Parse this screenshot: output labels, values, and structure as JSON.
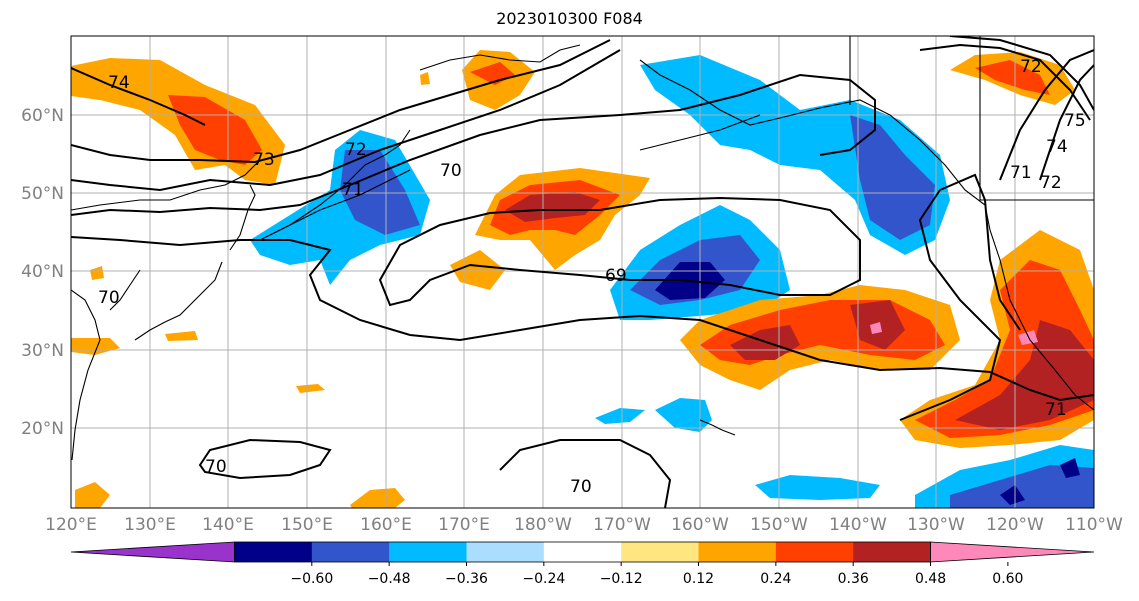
{
  "title": "2023010300 F084",
  "lat_labels": [
    "60°N",
    "50°N",
    "40°N",
    "30°N",
    "20°N"
  ],
  "lon_labels": [
    "120°E",
    "130°E",
    "140°E",
    "150°E",
    "160°E",
    "170°E",
    "180°W",
    "170°W",
    "160°W",
    "150°W",
    "140°W",
    "130°W",
    "120°W",
    "110°W"
  ],
  "colorbar": {
    "colors": [
      "#9933cc",
      "#000088",
      "#3355cc",
      "#00bbff",
      "#aaddff",
      "#ffffff",
      "#ffe680",
      "#ffa500",
      "#ff4000",
      "#b22222",
      "#ff88bb"
    ],
    "tick_labels": [
      "−0.60",
      "−0.48",
      "−0.36",
      "−0.24",
      "−0.12",
      "0.12",
      "0.24",
      "0.36",
      "0.48",
      "0.60"
    ]
  },
  "contour_labels": [
    "74",
    "73",
    "72",
    "71",
    "70",
    "69",
    "70",
    "70",
    "70",
    "72",
    "75",
    "74",
    "72",
    "71",
    "71"
  ],
  "colors": {
    "grid": "#b0b0b0",
    "coast": "#000000",
    "contour": "#000000",
    "axis_label": "#808080"
  }
}
